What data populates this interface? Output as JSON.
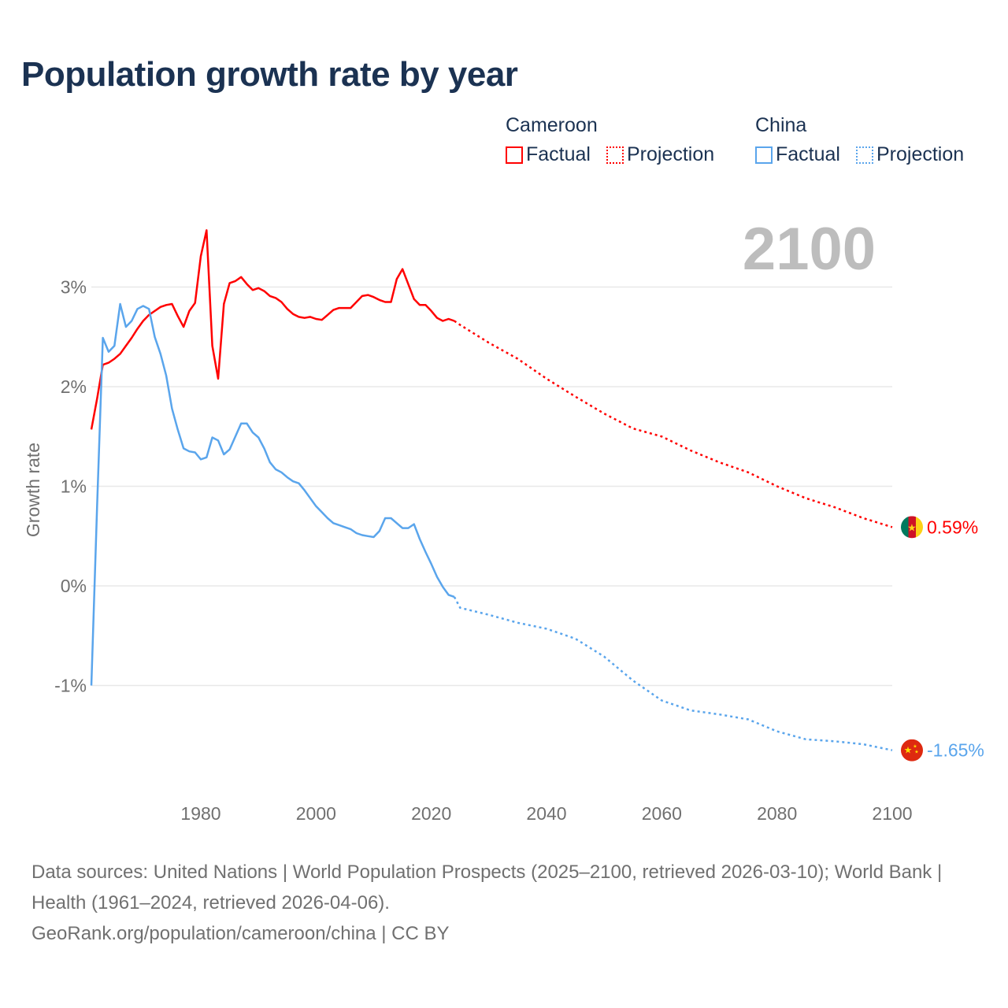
{
  "title": "Population growth rate by year",
  "legend": {
    "groups": [
      {
        "name": "Cameroon",
        "color": "#ff0000",
        "factual": "Factual",
        "projection": "Projection"
      },
      {
        "name": "China",
        "color": "#5aa5ec",
        "factual": "Factual",
        "projection": "Projection"
      }
    ]
  },
  "year_label": "2100",
  "footer": {
    "sources": "Data sources: United Nations | World Population Prospects (2025–2100, retrieved 2026-03-10); World Bank | Health (1961–2024, retrieved 2026-04-06).",
    "credit": "GeoRank.org/population/cameroon/china | CC BY"
  },
  "chart_data": {
    "type": "line",
    "title": "Population growth rate by year",
    "xlabel": "",
    "ylabel": "Growth rate",
    "xlim": [
      1961,
      2100
    ],
    "ylim": [
      -1.85,
      3.6
    ],
    "x_ticks": [
      1980,
      2000,
      2020,
      2040,
      2060,
      2080,
      2100
    ],
    "x_tick_labels": [
      "1980",
      "2000",
      "2020",
      "2040",
      "2060",
      "2080",
      "2100"
    ],
    "y_ticks": [
      3,
      2,
      1,
      0,
      -1
    ],
    "y_tick_labels": [
      "3%",
      "2%",
      "1%",
      "0%",
      "-1%"
    ],
    "grid": true,
    "series": [
      {
        "name": "Cameroon",
        "color": "#ff0000",
        "end_label": "0.59%",
        "factual": {
          "x": [
            1961,
            1962,
            1963,
            1964,
            1965,
            1966,
            1967,
            1968,
            1969,
            1970,
            1971,
            1972,
            1973,
            1974,
            1975,
            1976,
            1977,
            1978,
            1979,
            1980,
            1981,
            1982,
            1983,
            1984,
            1985,
            1986,
            1987,
            1988,
            1989,
            1990,
            1991,
            1992,
            1993,
            1994,
            1995,
            1996,
            1997,
            1998,
            1999,
            2000,
            2001,
            2002,
            2003,
            2004,
            2005,
            2006,
            2007,
            2008,
            2009,
            2010,
            2011,
            2012,
            2013,
            2014,
            2015,
            2016,
            2017,
            2018,
            2019,
            2020,
            2021,
            2022,
            2023,
            2024
          ],
          "y": [
            1.57,
            1.88,
            2.22,
            2.24,
            2.28,
            2.33,
            2.41,
            2.49,
            2.58,
            2.66,
            2.72,
            2.76,
            2.8,
            2.82,
            2.83,
            2.71,
            2.6,
            2.76,
            2.84,
            3.31,
            3.57,
            2.41,
            2.08,
            2.83,
            3.04,
            3.06,
            3.1,
            3.03,
            2.97,
            2.99,
            2.96,
            2.91,
            2.89,
            2.85,
            2.78,
            2.73,
            2.7,
            2.69,
            2.7,
            2.68,
            2.67,
            2.72,
            2.77,
            2.79,
            2.79,
            2.79,
            2.85,
            2.91,
            2.92,
            2.9,
            2.87,
            2.85,
            2.85,
            3.08,
            3.18,
            3.03,
            2.88,
            2.82,
            2.82,
            2.76,
            2.69,
            2.66,
            2.68,
            2.66
          ]
        },
        "projection": {
          "x": [
            2024,
            2025,
            2030,
            2035,
            2040,
            2045,
            2050,
            2055,
            2060,
            2065,
            2070,
            2075,
            2080,
            2085,
            2090,
            2095,
            2100
          ],
          "y": [
            2.66,
            2.62,
            2.44,
            2.28,
            2.08,
            1.9,
            1.73,
            1.58,
            1.5,
            1.36,
            1.24,
            1.14,
            1.0,
            0.88,
            0.79,
            0.68,
            0.59
          ]
        }
      },
      {
        "name": "China",
        "color": "#5aa5ec",
        "end_label": "-1.65%",
        "factual": {
          "x": [
            1961,
            1962,
            1963,
            1964,
            1965,
            1966,
            1967,
            1968,
            1969,
            1970,
            1971,
            1972,
            1973,
            1974,
            1975,
            1976,
            1977,
            1978,
            1979,
            1980,
            1981,
            1982,
            1983,
            1984,
            1985,
            1986,
            1987,
            1988,
            1989,
            1990,
            1991,
            1992,
            1993,
            1994,
            1995,
            1996,
            1997,
            1998,
            1999,
            2000,
            2001,
            2002,
            2003,
            2004,
            2005,
            2006,
            2007,
            2008,
            2009,
            2010,
            2011,
            2012,
            2013,
            2014,
            2015,
            2016,
            2017,
            2018,
            2019,
            2020,
            2021,
            2022,
            2023,
            2024
          ],
          "y": [
            -1.0,
            0.8,
            2.49,
            2.35,
            2.41,
            2.83,
            2.6,
            2.66,
            2.78,
            2.81,
            2.78,
            2.5,
            2.33,
            2.11,
            1.78,
            1.57,
            1.38,
            1.35,
            1.34,
            1.27,
            1.29,
            1.49,
            1.46,
            1.32,
            1.37,
            1.5,
            1.63,
            1.63,
            1.54,
            1.49,
            1.38,
            1.24,
            1.17,
            1.14,
            1.09,
            1.05,
            1.03,
            0.96,
            0.88,
            0.8,
            0.74,
            0.68,
            0.63,
            0.61,
            0.59,
            0.57,
            0.53,
            0.51,
            0.5,
            0.49,
            0.55,
            0.68,
            0.68,
            0.63,
            0.58,
            0.58,
            0.62,
            0.47,
            0.34,
            0.22,
            0.09,
            -0.01,
            -0.09,
            -0.11
          ]
        },
        "projection": {
          "x": [
            2024,
            2025,
            2030,
            2035,
            2040,
            2045,
            2050,
            2055,
            2060,
            2065,
            2070,
            2075,
            2080,
            2085,
            2090,
            2095,
            2100
          ],
          "y": [
            -0.11,
            -0.22,
            -0.29,
            -0.37,
            -0.43,
            -0.53,
            -0.71,
            -0.95,
            -1.15,
            -1.25,
            -1.29,
            -1.34,
            -1.46,
            -1.54,
            -1.56,
            -1.59,
            -1.65
          ]
        }
      }
    ]
  }
}
